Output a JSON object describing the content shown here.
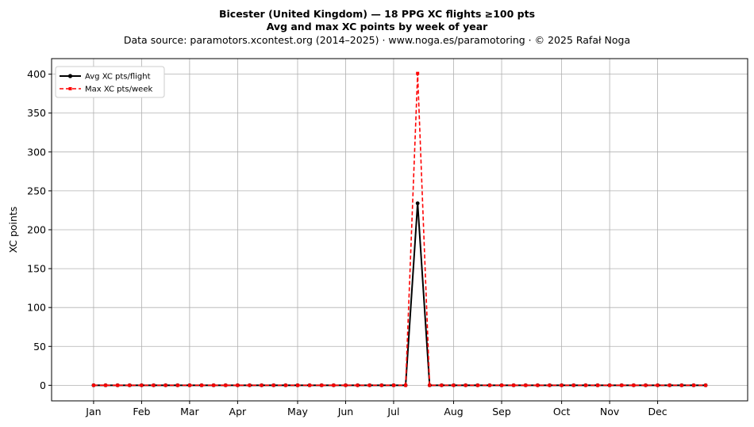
{
  "chart_data": {
    "type": "line",
    "title": "Bicester (United Kingdom)  —  18 PPG XC flights ≥100 pts",
    "subtitle": "Avg and max XC points by week of year",
    "source": "Data source: paramotors.xcontest.org (2014–2025)  ·  www.noga.es/paramotoring  ·  © 2025 Rafał Noga",
    "xlabel": "",
    "ylabel": "XC points",
    "ylim": [
      -20,
      420
    ],
    "xlim": [
      -2.5,
      55.5
    ],
    "yticks": [
      0,
      50,
      100,
      150,
      200,
      250,
      300,
      350,
      400
    ],
    "month_ticks": [
      {
        "label": "Jan",
        "week": 1
      },
      {
        "label": "Feb",
        "week": 5
      },
      {
        "label": "Mar",
        "week": 9
      },
      {
        "label": "Apr",
        "week": 13
      },
      {
        "label": "May",
        "week": 18
      },
      {
        "label": "Jun",
        "week": 22
      },
      {
        "label": "Jul",
        "week": 26
      },
      {
        "label": "Aug",
        "week": 31
      },
      {
        "label": "Sep",
        "week": 35
      },
      {
        "label": "Oct",
        "week": 40
      },
      {
        "label": "Nov",
        "week": 44
      },
      {
        "label": "Dec",
        "week": 48
      }
    ],
    "grid": true,
    "legend_position": "top-left",
    "x": [
      1,
      2,
      3,
      4,
      5,
      6,
      7,
      8,
      9,
      10,
      11,
      12,
      13,
      14,
      15,
      16,
      17,
      18,
      19,
      20,
      21,
      22,
      23,
      24,
      25,
      26,
      27,
      28,
      29,
      30,
      31,
      32,
      33,
      34,
      35,
      36,
      37,
      38,
      39,
      40,
      41,
      42,
      43,
      44,
      45,
      46,
      47,
      48,
      49,
      50,
      51,
      52
    ],
    "series": [
      {
        "name": "Avg XC pts/flight",
        "color": "#000000",
        "style": "solid-dot",
        "values": [
          0,
          0,
          0,
          0,
          0,
          0,
          0,
          0,
          0,
          0,
          0,
          0,
          0,
          0,
          0,
          0,
          0,
          0,
          0,
          0,
          0,
          0,
          0,
          0,
          0,
          0,
          0,
          234,
          0,
          0,
          0,
          0,
          0,
          0,
          0,
          0,
          0,
          0,
          0,
          0,
          0,
          0,
          0,
          0,
          0,
          0,
          0,
          0,
          0,
          0,
          0,
          0
        ]
      },
      {
        "name": "Max XC pts/week",
        "color": "#ff0000",
        "style": "dashed-square",
        "values": [
          0,
          0,
          0,
          0,
          0,
          0,
          0,
          0,
          0,
          0,
          0,
          0,
          0,
          0,
          0,
          0,
          0,
          0,
          0,
          0,
          0,
          0,
          0,
          0,
          0,
          0,
          0,
          401,
          0,
          0,
          0,
          0,
          0,
          0,
          0,
          0,
          0,
          0,
          0,
          0,
          0,
          0,
          0,
          0,
          0,
          0,
          0,
          0,
          0,
          0,
          0,
          0
        ]
      }
    ]
  }
}
